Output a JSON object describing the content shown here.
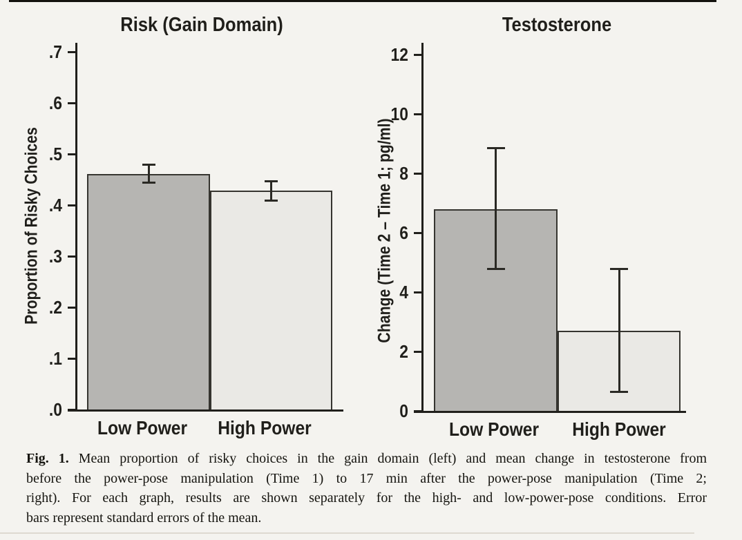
{
  "colors": {
    "background": "#f4f3ef",
    "low_power_fill": "#b6b5b2",
    "high_power_fill": "#eae9e5",
    "bar_outline": "#35342f",
    "axis": "#201f1b",
    "error_bar": "#2a2924",
    "text": "#201f1b"
  },
  "caption": {
    "label": "Fig. 1.",
    "line1_rest": "Mean proportion of risky choices in the gain domain (left) and mean change in testosterone from",
    "line2": "before the power-pose manipulation (Time 1) to 17 min after the power-pose manipulation (Time 2;",
    "line3": "right). For each graph, results are shown separately for the high- and low-power-pose conditions. Error",
    "line4": "bars represent standard errors of the mean."
  },
  "chart_data": [
    {
      "id": "risk-gain-domain",
      "type": "bar",
      "title": "Risk (Gain Domain)",
      "xlabel": "",
      "ylabel": "Proportion of Risky Choices",
      "categories": [
        "Low Power",
        "High Power"
      ],
      "values": [
        0.461,
        0.428
      ],
      "errors_low": [
        0.444,
        0.409
      ],
      "errors_high": [
        0.479,
        0.447
      ],
      "error_meaning": "standard error of the mean",
      "ylim": [
        0,
        0.7
      ],
      "yticks": [
        0,
        0.1,
        0.2,
        0.3,
        0.4,
        0.5,
        0.6,
        0.7
      ],
      "ytick_labels": [
        ".0",
        ".1",
        ".2",
        ".3",
        ".4",
        ".5",
        ".6",
        ".7"
      ],
      "bar_fills": [
        "#b6b5b2",
        "#eae9e5"
      ],
      "grid": false,
      "legend": null
    },
    {
      "id": "testosterone",
      "type": "bar",
      "title": "Testosterone",
      "xlabel": "",
      "ylabel": "Change (Time 2 – Time 1; pg/ml)",
      "categories": [
        "Low Power",
        "High Power"
      ],
      "values": [
        6.79,
        2.7
      ],
      "errors_low": [
        4.79,
        0.65
      ],
      "errors_high": [
        8.84,
        4.78
      ],
      "error_meaning": "standard error of the mean",
      "ylim": [
        0,
        12
      ],
      "yticks": [
        0,
        2,
        4,
        6,
        8,
        10,
        12
      ],
      "ytick_labels": [
        "0",
        "2",
        "4",
        "6",
        "8",
        "10",
        "12"
      ],
      "bar_fills": [
        "#b6b5b2",
        "#eae9e5"
      ],
      "grid": false,
      "legend": null
    }
  ]
}
